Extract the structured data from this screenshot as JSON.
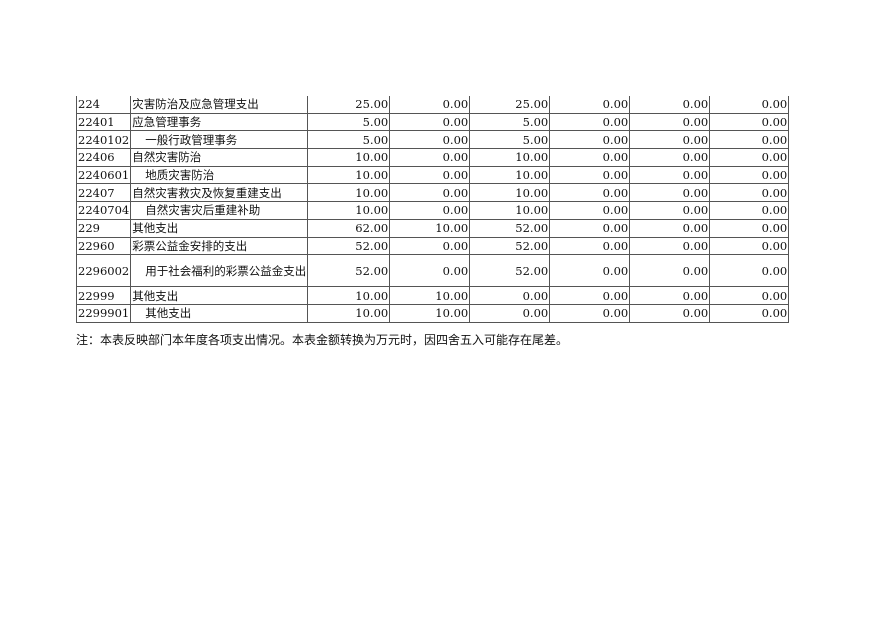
{
  "rows": [
    {
      "code": "224",
      "name": "灾害防治及应急管理支出",
      "indent": false,
      "values": [
        "25.00",
        "0.00",
        "25.00",
        "0.00",
        "0.00",
        "0.00"
      ]
    },
    {
      "code": "22401",
      "name": "应急管理事务",
      "indent": false,
      "values": [
        "5.00",
        "0.00",
        "5.00",
        "0.00",
        "0.00",
        "0.00"
      ]
    },
    {
      "code": "2240102",
      "name": "一般行政管理事务",
      "indent": true,
      "values": [
        "5.00",
        "0.00",
        "5.00",
        "0.00",
        "0.00",
        "0.00"
      ]
    },
    {
      "code": "22406",
      "name": "自然灾害防治",
      "indent": false,
      "values": [
        "10.00",
        "0.00",
        "10.00",
        "0.00",
        "0.00",
        "0.00"
      ]
    },
    {
      "code": "2240601",
      "name": "地质灾害防治",
      "indent": true,
      "values": [
        "10.00",
        "0.00",
        "10.00",
        "0.00",
        "0.00",
        "0.00"
      ]
    },
    {
      "code": "22407",
      "name": "自然灾害救灾及恢复重建支出",
      "indent": false,
      "values": [
        "10.00",
        "0.00",
        "10.00",
        "0.00",
        "0.00",
        "0.00"
      ]
    },
    {
      "code": "2240704",
      "name": "自然灾害灾后重建补助",
      "indent": true,
      "values": [
        "10.00",
        "0.00",
        "10.00",
        "0.00",
        "0.00",
        "0.00"
      ]
    },
    {
      "code": "229",
      "name": "其他支出",
      "indent": false,
      "values": [
        "62.00",
        "10.00",
        "52.00",
        "0.00",
        "0.00",
        "0.00"
      ]
    },
    {
      "code": "22960",
      "name": "彩票公益金安排的支出",
      "indent": false,
      "values": [
        "52.00",
        "0.00",
        "52.00",
        "0.00",
        "0.00",
        "0.00"
      ]
    },
    {
      "code": "2296002",
      "name": "用于社会福利的彩票公益金支出",
      "indent": true,
      "values": [
        "52.00",
        "0.00",
        "52.00",
        "0.00",
        "0.00",
        "0.00"
      ]
    },
    {
      "code": "22999",
      "name": "其他支出",
      "indent": false,
      "values": [
        "10.00",
        "10.00",
        "0.00",
        "0.00",
        "0.00",
        "0.00"
      ]
    },
    {
      "code": "2299901",
      "name": "其他支出",
      "indent": true,
      "values": [
        "10.00",
        "10.00",
        "0.00",
        "0.00",
        "0.00",
        "0.00"
      ]
    }
  ],
  "note": "注：本表反映部门本年度各项支出情况。本表金额转换为万元时，因四舍五入可能存在尾差。"
}
